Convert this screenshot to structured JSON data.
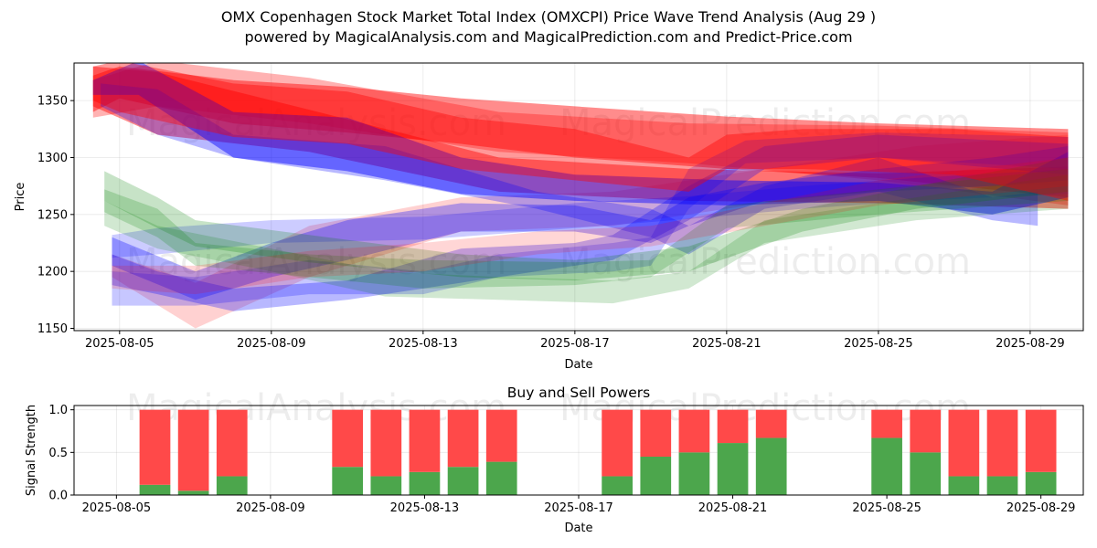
{
  "title": "OMX Copenhagen Stock Market Total Index (OMXCPI) Price Wave Trend Analysis (Aug 29 )",
  "subtitle": "powered by MagicalAnalysis.com and MagicalPrediction.com and Predict-Price.com",
  "watermarks": [
    "MagicalAnalysis.com",
    "MagicalPrediction.com"
  ],
  "colors": {
    "red": "#ff0000",
    "blue": "#0000ff",
    "green": "#008000",
    "buy": "#4ca64c",
    "sell": "#ff4949"
  },
  "chart_data": [
    {
      "type": "area",
      "title": "",
      "xlabel": "Date",
      "ylabel": "Price",
      "xlim": [
        "2025-08-03.8",
        "2025-08-30.4"
      ],
      "ylim": [
        1148,
        1383
      ],
      "xticks": [
        "2025-08-05",
        "2025-08-09",
        "2025-08-13",
        "2025-08-17",
        "2025-08-21",
        "2025-08-25",
        "2025-08-29"
      ],
      "yticks": [
        1150,
        1200,
        1250,
        1300,
        1350
      ],
      "grid": true,
      "series": [
        {
          "color": "red",
          "day0": 4.3,
          "alpha": 0.45,
          "points": [
            [
              4.3,
              1372,
              1340
            ],
            [
              5,
              1380,
              1352
            ],
            [
              8,
              1368,
              1330
            ],
            [
              11,
              1362,
              1322
            ],
            [
              14,
              1352,
              1312
            ],
            [
              17,
              1345,
              1300
            ],
            [
              21,
              1336,
              1290
            ],
            [
              25,
              1330,
              1282
            ],
            [
              30,
              1325,
              1265
            ]
          ]
        },
        {
          "color": "red",
          "day0": 4.3,
          "alpha": 0.3,
          "points": [
            [
              4.3,
              1368,
              1335
            ],
            [
              6,
              1385,
              1345
            ],
            [
              10,
              1370,
              1330
            ],
            [
              15,
              1340,
              1305
            ],
            [
              20,
              1330,
              1295
            ],
            [
              25,
              1328,
              1280
            ],
            [
              30,
              1322,
              1258
            ]
          ]
        },
        {
          "color": "red",
          "day0": 4.3,
          "alpha": 0.45,
          "points": [
            [
              4.3,
              1380,
              1345
            ],
            [
              6,
              1375,
              1320
            ],
            [
              10,
              1342,
              1305
            ],
            [
              15,
              1300,
              1270
            ],
            [
              20,
              1290,
              1262
            ],
            [
              25,
              1286,
              1260
            ],
            [
              30,
              1292,
              1255
            ]
          ]
        },
        {
          "color": "red",
          "day0": 4.8,
          "alpha": 0.18,
          "points": [
            [
              4.8,
              1215,
              1195
            ],
            [
              7,
              1190,
              1150
            ],
            [
              10,
              1240,
              1195
            ],
            [
              14,
              1265,
              1235
            ],
            [
              18,
              1270,
              1240
            ],
            [
              22,
              1290,
              1260
            ],
            [
              26,
              1310,
              1275
            ],
            [
              30,
              1320,
              1275
            ]
          ]
        },
        {
          "color": "blue",
          "day0": 4.3,
          "alpha": 0.45,
          "points": [
            [
              4.3,
              1368,
              1355
            ],
            [
              5.5,
              1385,
              1355
            ],
            [
              8,
              1340,
              1300
            ],
            [
              11,
              1335,
              1288
            ],
            [
              14,
              1300,
              1268
            ],
            [
              17,
              1285,
              1262
            ],
            [
              21,
              1280,
              1258
            ],
            [
              25,
              1278,
              1262
            ],
            [
              28,
              1270,
              1250
            ],
            [
              30,
              1305,
              1265
            ]
          ]
        },
        {
          "color": "blue",
          "day0": 4.5,
          "alpha": 0.28,
          "points": [
            [
              4.5,
              1365,
              1345
            ],
            [
              6,
              1360,
              1320
            ],
            [
              8,
              1320,
              1300
            ],
            [
              12,
              1310,
              1280
            ],
            [
              16,
              1270,
              1255
            ],
            [
              19,
              1255,
              1230
            ],
            [
              20,
              1240,
              1215
            ],
            [
              22,
              1275,
              1255
            ],
            [
              25,
              1300,
              1270
            ],
            [
              28,
              1265,
              1245
            ],
            [
              29.2,
              1270,
              1240
            ]
          ]
        },
        {
          "color": "blue",
          "day0": 4.8,
          "alpha": 0.3,
          "points": [
            [
              4.8,
              1230,
              1205
            ],
            [
              7,
              1200,
              1175
            ],
            [
              9,
              1225,
              1195
            ],
            [
              11,
              1245,
              1210
            ],
            [
              14,
              1260,
              1235
            ],
            [
              17,
              1258,
              1235
            ],
            [
              19,
              1245,
              1225
            ],
            [
              20,
              1265,
              1240
            ],
            [
              22,
              1278,
              1262
            ],
            [
              25,
              1290,
              1270
            ],
            [
              28,
              1300,
              1275
            ],
            [
              30,
              1310,
              1280
            ]
          ]
        },
        {
          "color": "blue",
          "day0": 4.8,
          "alpha": 0.28,
          "points": [
            [
              4.8,
              1215,
              1188
            ],
            [
              6,
              1200,
              1180
            ],
            [
              8,
              1185,
              1165
            ],
            [
              11,
              1192,
              1175
            ],
            [
              14,
              1220,
              1190
            ],
            [
              17,
              1225,
              1205
            ],
            [
              18,
              1232,
              1210
            ],
            [
              20,
              1275,
              1245
            ],
            [
              22,
              1310,
              1290
            ],
            [
              25,
              1320,
              1300
            ],
            [
              30,
              1312,
              1285
            ]
          ]
        },
        {
          "color": "blue",
          "day0": 4.8,
          "alpha": 0.22,
          "points": [
            [
              4.8,
              1200,
              1170
            ],
            [
              7,
              1195,
              1170
            ],
            [
              10,
              1210,
              1180
            ],
            [
              13,
              1200,
              1180
            ],
            [
              15,
              1215,
              1195
            ],
            [
              18,
              1225,
              1200
            ],
            [
              19,
              1230,
              1205
            ],
            [
              20,
              1290,
              1255
            ],
            [
              21.5,
              1315,
              1295
            ],
            [
              25,
              1322,
              1300
            ],
            [
              30,
              1318,
              1290
            ]
          ]
        },
        {
          "color": "blue",
          "day0": 4.8,
          "alpha": 0.2,
          "points": [
            [
              4.8,
              1232,
              1212
            ],
            [
              6,
              1238,
              1215
            ],
            [
              9,
              1245,
              1225
            ],
            [
              13,
              1248,
              1228
            ],
            [
              17,
              1260,
              1238
            ],
            [
              20,
              1266,
              1246
            ],
            [
              23,
              1275,
              1255
            ],
            [
              26,
              1282,
              1262
            ],
            [
              30,
              1290,
              1268
            ]
          ]
        },
        {
          "color": "green",
          "day0": 4.6,
          "alpha": 0.22,
          "points": [
            [
              4.6,
              1288,
              1262
            ],
            [
              6,
              1265,
              1238
            ],
            [
              7,
              1245,
              1222
            ],
            [
              10,
              1232,
              1208
            ],
            [
              14,
              1215,
              1195
            ],
            [
              17,
              1210,
              1192
            ],
            [
              20,
              1222,
              1200
            ],
            [
              23,
              1255,
              1235
            ],
            [
              26,
              1275,
              1255
            ],
            [
              30,
              1300,
              1270
            ]
          ]
        },
        {
          "color": "green",
          "day0": 4.6,
          "alpha": 0.2,
          "points": [
            [
              4.6,
              1272,
              1252
            ],
            [
              6,
              1255,
              1230
            ],
            [
              7,
              1225,
              1205
            ],
            [
              10,
              1215,
              1195
            ],
            [
              13,
              1210,
              1185
            ],
            [
              17,
              1208,
              1188
            ],
            [
              19,
              1210,
              1195
            ],
            [
              21,
              1258,
              1238
            ],
            [
              25,
              1272,
              1250
            ],
            [
              30,
              1290,
              1262
            ]
          ]
        },
        {
          "color": "green",
          "day0": 4.6,
          "alpha": 0.18,
          "points": [
            [
              4.6,
              1262,
              1240
            ],
            [
              6,
              1240,
              1220
            ],
            [
              9,
              1220,
              1200
            ],
            [
              12,
              1200,
              1178
            ],
            [
              15,
              1195,
              1175
            ],
            [
              18,
              1192,
              1172
            ],
            [
              20,
              1200,
              1185
            ],
            [
              22,
              1245,
              1225
            ],
            [
              26,
              1265,
              1245
            ],
            [
              30,
              1285,
              1255
            ]
          ]
        },
        {
          "color": "red",
          "day0": 4.3,
          "alpha": 0.4,
          "points": [
            [
              4.3,
              1380,
              1350
            ],
            [
              5,
              1385,
              1340
            ],
            [
              8,
              1365,
              1318
            ],
            [
              11,
              1358,
              1312
            ],
            [
              14,
              1335,
              1290
            ],
            [
              17,
              1325,
              1280
            ],
            [
              20,
              1300,
              1270
            ],
            [
              21,
              1320,
              1290
            ],
            [
              23,
              1325,
              1290
            ],
            [
              27,
              1325,
              1285
            ],
            [
              30,
              1318,
              1262
            ]
          ]
        },
        {
          "color": "red",
          "day0": 4.8,
          "alpha": 0.16,
          "points": [
            [
              4.8,
              1205,
              1185
            ],
            [
              7,
              1205,
              1180
            ],
            [
              10,
              1218,
              1195
            ],
            [
              13,
              1225,
              1200
            ],
            [
              16,
              1235,
              1215
            ],
            [
              19,
              1240,
              1222
            ],
            [
              22,
              1260,
              1240
            ],
            [
              25,
              1280,
              1258
            ],
            [
              30,
              1300,
              1275
            ]
          ]
        }
      ]
    },
    {
      "type": "bar",
      "title": "Buy and Sell Powers",
      "xlabel": "Date",
      "ylabel": "Signal Strength",
      "ylim": [
        0,
        1.05
      ],
      "yticks": [
        "0.0",
        "0.5",
        "1.0"
      ],
      "xticks": [
        "2025-08-05",
        "2025-08-09",
        "2025-08-13",
        "2025-08-17",
        "2025-08-21",
        "2025-08-25",
        "2025-08-29"
      ],
      "grid": true,
      "categories": [
        "2025-08-06",
        "2025-08-07",
        "2025-08-08",
        "2025-08-11",
        "2025-08-12",
        "2025-08-13",
        "2025-08-14",
        "2025-08-15",
        "2025-08-18",
        "2025-08-19",
        "2025-08-20",
        "2025-08-21",
        "2025-08-22",
        "2025-08-25",
        "2025-08-26",
        "2025-08-27",
        "2025-08-28",
        "2025-08-29"
      ],
      "series": [
        {
          "name": "Buy",
          "values": [
            0.12,
            0.05,
            0.22,
            0.33,
            0.22,
            0.27,
            0.33,
            0.39,
            0.22,
            0.45,
            0.5,
            0.61,
            0.67,
            0.67,
            0.5,
            0.22,
            0.22,
            0.27
          ]
        },
        {
          "name": "Sell",
          "values": [
            0.88,
            0.95,
            0.78,
            0.67,
            0.78,
            0.73,
            0.67,
            0.61,
            0.78,
            0.55,
            0.5,
            0.39,
            0.33,
            0.33,
            0.5,
            0.78,
            0.78,
            0.73
          ]
        }
      ]
    }
  ]
}
